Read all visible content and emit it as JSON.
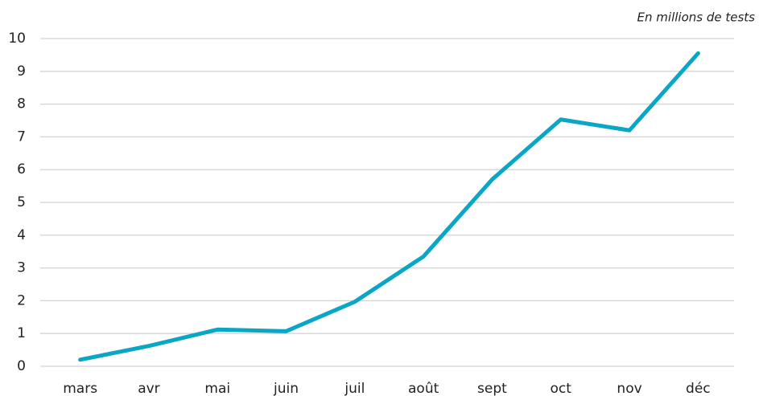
{
  "chart_data": {
    "type": "line",
    "annotation": "En millions de tests",
    "categories": [
      "mars",
      "avr",
      "mai",
      "juin",
      "juil",
      "août",
      "sept",
      "oct",
      "nov",
      "déc"
    ],
    "values": [
      0.2,
      0.62,
      1.12,
      1.07,
      1.97,
      3.35,
      5.7,
      7.53,
      7.2,
      9.55
    ],
    "color": "#0aa6c6",
    "ylim": [
      0,
      10
    ],
    "yticks": [
      0,
      1,
      2,
      3,
      4,
      5,
      6,
      7,
      8,
      9,
      10
    ],
    "grid": true
  }
}
